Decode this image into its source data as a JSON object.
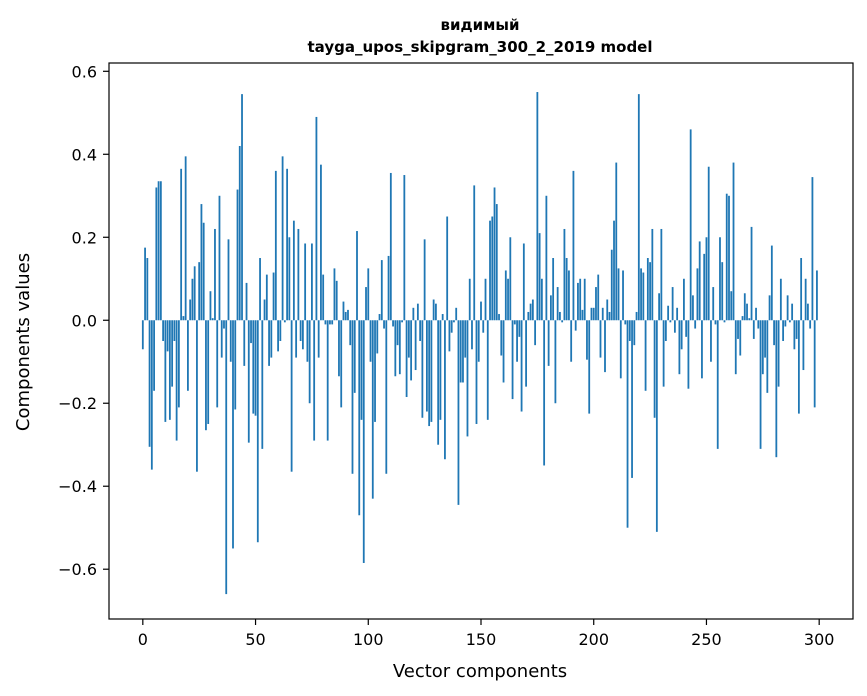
{
  "chart_data": {
    "type": "bar",
    "title": "видимый",
    "subtitle": "tayga_upos_skipgram_300_2_2019 model",
    "xlabel": "Vector components",
    "ylabel": "Components values",
    "xlim": [
      -15,
      315
    ],
    "ylim": [
      -0.72,
      0.62
    ],
    "xticks": [
      0,
      50,
      100,
      150,
      200,
      250,
      300
    ],
    "xtick_labels": [
      "0",
      "50",
      "100",
      "150",
      "200",
      "250",
      "300"
    ],
    "yticks": [
      -0.6,
      -0.4,
      -0.2,
      0.0,
      0.2,
      0.4,
      0.6
    ],
    "ytick_labels": [
      "−0.6",
      "−0.4",
      "−0.2",
      "0.0",
      "0.2",
      "0.4",
      "0.6"
    ],
    "grid": false,
    "legend": "none",
    "bar_color": "#1f77b4",
    "x": [
      0,
      1,
      2,
      3,
      4,
      5,
      6,
      7,
      8,
      9,
      10,
      11,
      12,
      13,
      14,
      15,
      16,
      17,
      18,
      19,
      20,
      21,
      22,
      23,
      24,
      25,
      26,
      27,
      28,
      29,
      30,
      31,
      32,
      33,
      34,
      35,
      36,
      37,
      38,
      39,
      40,
      41,
      42,
      43,
      44,
      45,
      46,
      47,
      48,
      49,
      50,
      51,
      52,
      53,
      54,
      55,
      56,
      57,
      58,
      59,
      60,
      61,
      62,
      63,
      64,
      65,
      66,
      67,
      68,
      69,
      70,
      71,
      72,
      73,
      74,
      75,
      76,
      77,
      78,
      79,
      80,
      81,
      82,
      83,
      84,
      85,
      86,
      87,
      88,
      89,
      90,
      91,
      92,
      93,
      94,
      95,
      96,
      97,
      98,
      99,
      100,
      101,
      102,
      103,
      104,
      105,
      106,
      107,
      108,
      109,
      110,
      111,
      112,
      113,
      114,
      115,
      116,
      117,
      118,
      119,
      120,
      121,
      122,
      123,
      124,
      125,
      126,
      127,
      128,
      129,
      130,
      131,
      132,
      133,
      134,
      135,
      136,
      137,
      138,
      139,
      140,
      141,
      142,
      143,
      144,
      145,
      146,
      147,
      148,
      149,
      150,
      151,
      152,
      153,
      154,
      155,
      156,
      157,
      158,
      159,
      160,
      161,
      162,
      163,
      164,
      165,
      166,
      167,
      168,
      169,
      170,
      171,
      172,
      173,
      174,
      175,
      176,
      177,
      178,
      179,
      180,
      181,
      182,
      183,
      184,
      185,
      186,
      187,
      188,
      189,
      190,
      191,
      192,
      193,
      194,
      195,
      196,
      197,
      198,
      199,
      200,
      201,
      202,
      203,
      204,
      205,
      206,
      207,
      208,
      209,
      210,
      211,
      212,
      213,
      214,
      215,
      216,
      217,
      218,
      219,
      220,
      221,
      222,
      223,
      224,
      225,
      226,
      227,
      228,
      229,
      230,
      231,
      232,
      233,
      234,
      235,
      236,
      237,
      238,
      239,
      240,
      241,
      242,
      243,
      244,
      245,
      246,
      247,
      248,
      249,
      250,
      251,
      252,
      253,
      254,
      255,
      256,
      257,
      258,
      259,
      260,
      261,
      262,
      263,
      264,
      265,
      266,
      267,
      268,
      269,
      270,
      271,
      272,
      273,
      274,
      275,
      276,
      277,
      278,
      279,
      280,
      281,
      282,
      283,
      284,
      285,
      286,
      287,
      288,
      289,
      290,
      291,
      292,
      293,
      294,
      295,
      296,
      297,
      298,
      299
    ],
    "values": [
      -0.07,
      0.175,
      0.15,
      -0.305,
      -0.36,
      -0.17,
      0.32,
      0.335,
      0.335,
      -0.05,
      -0.245,
      -0.075,
      -0.24,
      -0.16,
      -0.05,
      -0.29,
      -0.21,
      0.365,
      0.01,
      0.395,
      -0.17,
      0.05,
      0.1,
      0.13,
      -0.365,
      0.14,
      0.28,
      0.235,
      -0.265,
      -0.25,
      0.07,
      0.005,
      0.22,
      -0.21,
      0.3,
      -0.09,
      -0.02,
      -0.66,
      0.195,
      -0.1,
      -0.55,
      -0.215,
      0.315,
      0.42,
      0.545,
      -0.11,
      0.09,
      -0.295,
      -0.055,
      -0.225,
      -0.23,
      -0.535,
      0.15,
      -0.31,
      0.05,
      0.11,
      -0.11,
      -0.09,
      0.115,
      0.36,
      -0.075,
      -0.05,
      0.395,
      -0.005,
      0.365,
      0.2,
      -0.365,
      0.24,
      -0.09,
      0.22,
      -0.05,
      -0.07,
      0.185,
      -0.1,
      -0.2,
      0.185,
      -0.29,
      0.49,
      -0.09,
      0.375,
      0.11,
      -0.01,
      -0.29,
      -0.01,
      -0.01,
      0.125,
      0.095,
      -0.135,
      -0.21,
      0.045,
      0.02,
      0.025,
      -0.06,
      -0.37,
      -0.175,
      0.215,
      -0.47,
      -0.24,
      -0.585,
      0.08,
      0.125,
      -0.1,
      -0.43,
      -0.245,
      -0.08,
      0.015,
      0.145,
      -0.02,
      -0.37,
      0.155,
      0.355,
      -0.015,
      -0.135,
      -0.06,
      -0.13,
      -0.005,
      0.35,
      -0.185,
      -0.09,
      -0.145,
      0.03,
      -0.12,
      0.04,
      -0.05,
      -0.235,
      0.195,
      -0.22,
      -0.255,
      -0.245,
      0.05,
      0.04,
      -0.3,
      -0.24,
      0.015,
      -0.335,
      0.25,
      -0.075,
      -0.03,
      -0.005,
      0.03,
      -0.445,
      -0.15,
      -0.15,
      -0.09,
      -0.28,
      0.1,
      -0.07,
      0.325,
      -0.25,
      -0.1,
      0.045,
      -0.03,
      0.1,
      -0.24,
      0.24,
      0.25,
      0.32,
      0.28,
      0.015,
      -0.085,
      -0.15,
      0.12,
      0.1,
      0.2,
      -0.19,
      -0.01,
      -0.1,
      -0.04,
      -0.22,
      0.185,
      -0.16,
      0.02,
      0.04,
      0.05,
      -0.06,
      0.55,
      0.21,
      0.1,
      -0.35,
      0.3,
      -0.11,
      0.06,
      0.15,
      -0.2,
      0.08,
      0.02,
      -0.005,
      0.22,
      0.15,
      0.12,
      -0.1,
      0.36,
      -0.025,
      0.09,
      0.1,
      0.025,
      0.1,
      -0.095,
      -0.225,
      0.03,
      0.03,
      0.08,
      0.11,
      -0.09,
      0.03,
      -0.125,
      0.05,
      0.02,
      0.17,
      0.24,
      0.38,
      0.125,
      -0.14,
      0.12,
      -0.01,
      -0.5,
      -0.05,
      -0.38,
      -0.06,
      0.02,
      0.545,
      0.125,
      0.115,
      -0.17,
      0.15,
      0.14,
      0.22,
      -0.235,
      -0.51,
      0.065,
      0.22,
      -0.16,
      -0.05,
      0.035,
      -0.005,
      0.08,
      -0.03,
      0.03,
      -0.13,
      -0.07,
      0.1,
      -0.04,
      -0.165,
      0.46,
      0.06,
      -0.02,
      0.125,
      0.19,
      -0.14,
      0.16,
      0.2,
      0.37,
      -0.1,
      0.08,
      -0.01,
      -0.31,
      0.2,
      0.14,
      -0.005,
      0.305,
      0.3,
      0.07,
      0.38,
      -0.13,
      -0.045,
      -0.085,
      0.01,
      0.065,
      0.04,
      0.005,
      0.225,
      -0.045,
      0.03,
      -0.02,
      -0.31,
      -0.13,
      -0.09,
      -0.175,
      0.06,
      0.18,
      -0.06,
      -0.33,
      -0.16,
      0.1,
      -0.05,
      -0.015,
      0.06,
      -0.005,
      0.04,
      -0.07,
      -0.045,
      -0.225,
      0.15,
      -0.12,
      0.1,
      0.04,
      -0.02,
      0.345,
      -0.21,
      0.12
    ]
  }
}
